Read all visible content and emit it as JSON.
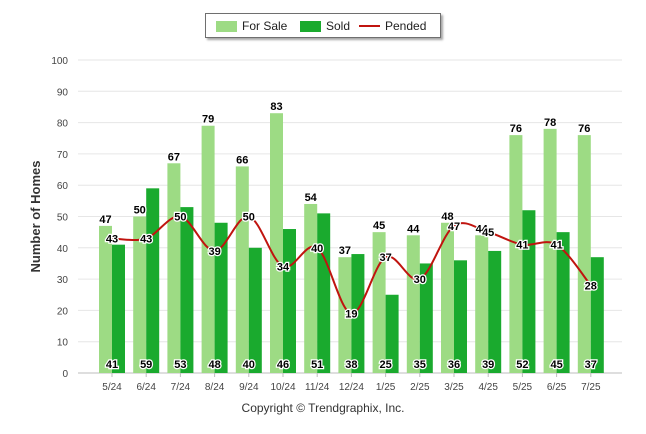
{
  "chart_data": {
    "type": "bar",
    "ylabel": "Number of Homes",
    "xlabel": "",
    "ylim": [
      0,
      100
    ],
    "yticks": [
      0,
      10,
      20,
      30,
      40,
      50,
      60,
      70,
      80,
      90,
      100
    ],
    "grid": true,
    "legend_position": "top-center",
    "categories": [
      "5/24",
      "6/24",
      "7/24",
      "8/24",
      "9/24",
      "10/24",
      "11/24",
      "12/24",
      "1/25",
      "2/25",
      "3/25",
      "4/25",
      "5/25",
      "6/25",
      "7/25"
    ],
    "series": [
      {
        "name": "For Sale",
        "kind": "bar",
        "color": "#9ddb84",
        "values": [
          47,
          50,
          67,
          79,
          66,
          83,
          54,
          37,
          45,
          44,
          48,
          44,
          76,
          78,
          76
        ]
      },
      {
        "name": "Sold",
        "kind": "bar",
        "color": "#1aaa2e",
        "values": [
          41,
          59,
          53,
          48,
          40,
          46,
          51,
          38,
          25,
          35,
          36,
          39,
          52,
          45,
          37
        ]
      },
      {
        "name": "Pended",
        "kind": "line",
        "color": "#c0140f",
        "values": [
          43,
          43,
          50,
          39,
          50,
          34,
          40,
          19,
          37,
          30,
          47,
          45,
          41,
          41,
          28
        ]
      }
    ]
  },
  "legend": {
    "for_sale_label": "For Sale",
    "sold_label": "Sold",
    "pended_label": "Pended"
  },
  "footer": {
    "copyright": "Copyright © Trendgraphix, Inc."
  }
}
